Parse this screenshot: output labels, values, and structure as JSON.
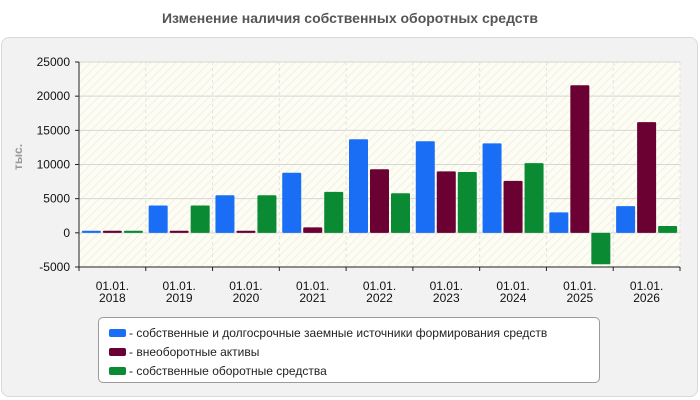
{
  "chart_data": {
    "type": "bar",
    "title": "Изменение наличия собственных оборотных средств",
    "ylabel": "тыс.",
    "xlabel": "",
    "ylim": [
      -5000,
      25000
    ],
    "yticks": [
      -5000,
      0,
      5000,
      10000,
      15000,
      20000,
      25000
    ],
    "grid": true,
    "legend_position": "bottom",
    "categories": [
      [
        "01.01.",
        "2018"
      ],
      [
        "01.01.",
        "2019"
      ],
      [
        "01.01.",
        "2020"
      ],
      [
        "01.01.",
        "2021"
      ],
      [
        "01.01.",
        "2022"
      ],
      [
        "01.01.",
        "2023"
      ],
      [
        "01.01.",
        "2024"
      ],
      [
        "01.01.",
        "2025"
      ],
      [
        "01.01.",
        "2026"
      ]
    ],
    "series": [
      {
        "name": "собственные и долгосрочные заемные источники формирования средств",
        "color": "#1a6ef5",
        "values": [
          300,
          4000,
          5500,
          8800,
          13700,
          13400,
          13100,
          3000,
          3900
        ]
      },
      {
        "name": "внеоборотные активы",
        "color": "#6b0033",
        "values": [
          300,
          300,
          300,
          800,
          9300,
          9000,
          7600,
          21600,
          16200
        ]
      },
      {
        "name": "собственные оборотные средства",
        "color": "#0a8a33",
        "values": [
          300,
          4000,
          5500,
          6000,
          5800,
          8900,
          10200,
          -4600,
          1000
        ]
      }
    ]
  }
}
